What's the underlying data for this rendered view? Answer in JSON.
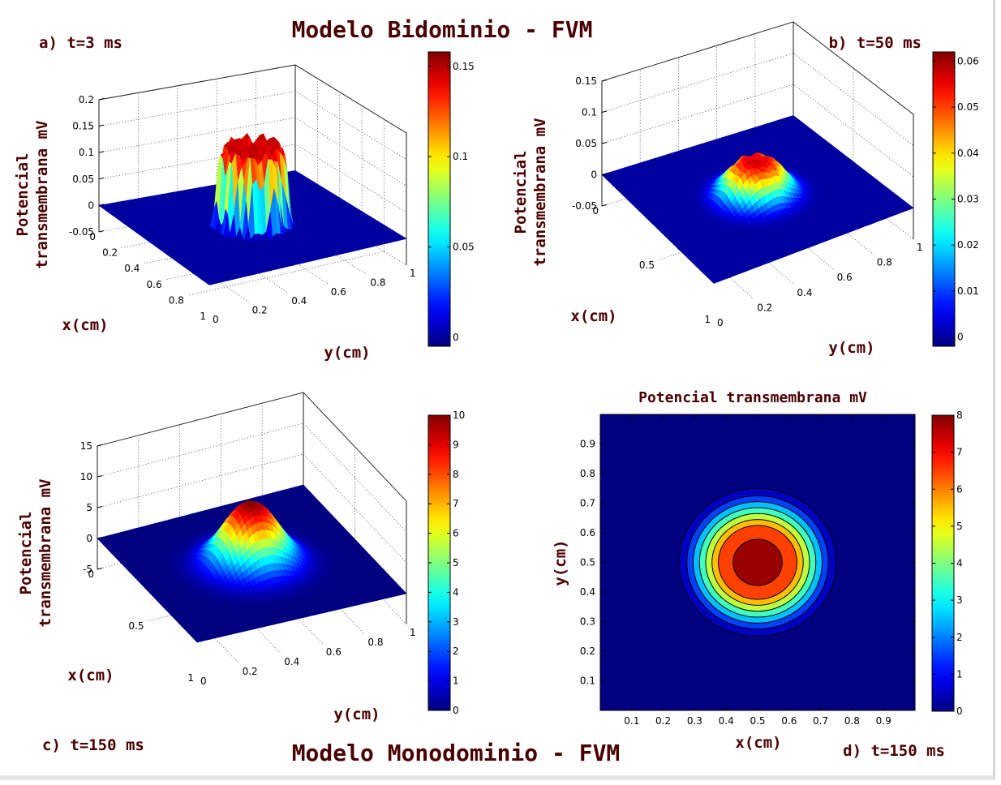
{
  "titles": {
    "top": "Modelo Bidominio - FVM",
    "bottom": "Modelo Monodominio - FVM"
  },
  "colors": {
    "title": "#4a0000",
    "surface_base": "#0000c8",
    "colormap": "jet"
  },
  "chart_data": [
    {
      "type": "surface",
      "panel_label": "a) t=3 ms",
      "zlabel": "Potencial transmembrana mV",
      "xlabel": "x(cm)",
      "ylabel": "y(cm)",
      "x_ticks": [
        "0",
        "0.2",
        "0.4",
        "0.6",
        "0.8",
        "1"
      ],
      "y_ticks": [
        "0",
        "0.2",
        "0.4",
        "0.6",
        "0.8",
        "1"
      ],
      "z_ticks": [
        "-0.05",
        "0",
        "0.05",
        "0.1",
        "0.15",
        "0.2"
      ],
      "zlim": [
        -0.05,
        0.2
      ],
      "colorbar": {
        "ticks": [
          "0",
          "0.05",
          "0.1",
          "0.15"
        ],
        "range": [
          -0.005,
          0.158
        ]
      },
      "peak": 0.155,
      "center": [
        0.5,
        0.5
      ],
      "shape": "plateau"
    },
    {
      "type": "surface",
      "panel_label": "b) t=50 ms",
      "zlabel": "Potencial transmembrana mV",
      "xlabel": "x(cm)",
      "ylabel": "y(cm)",
      "x_ticks": [
        "0",
        "0.5",
        "1"
      ],
      "y_ticks": [
        "0",
        "0.2",
        "0.4",
        "0.6",
        "0.8",
        "1"
      ],
      "z_ticks": [
        "-0.05",
        "0",
        "0.05",
        "0.1",
        "0.15"
      ],
      "zlim": [
        -0.05,
        0.15
      ],
      "colorbar": {
        "ticks": [
          "0",
          "0.01",
          "0.02",
          "0.03",
          "0.04",
          "0.05",
          "0.06"
        ],
        "range": [
          -0.002,
          0.062
        ]
      },
      "peak": 0.06,
      "center": [
        0.5,
        0.5
      ],
      "shape": "dome"
    },
    {
      "type": "surface",
      "panel_label": "c) t=150 ms",
      "zlabel": "Potencial transmembrana mV",
      "xlabel": "x(cm)",
      "ylabel": "y(cm)",
      "x_ticks": [
        "0",
        "0.5",
        "1"
      ],
      "y_ticks": [
        "0",
        "0.2",
        "0.4",
        "0.6",
        "0.8",
        "1"
      ],
      "z_ticks": [
        "-5",
        "0",
        "5",
        "10",
        "15"
      ],
      "zlim": [
        -5,
        15
      ],
      "colorbar": {
        "ticks": [
          "0",
          "1",
          "2",
          "3",
          "4",
          "5",
          "6",
          "7",
          "8",
          "9",
          "10"
        ],
        "range": [
          0,
          10
        ]
      },
      "peak": 10,
      "center": [
        0.5,
        0.5
      ],
      "shape": "gaussian"
    },
    {
      "type": "contour",
      "panel_label": "d) t=150 ms",
      "title": "Potencial transmembrana mV",
      "xlabel": "x(cm)",
      "ylabel": "y(cm)",
      "x_ticks": [
        "0.1",
        "0.2",
        "0.3",
        "0.4",
        "0.5",
        "0.6",
        "0.7",
        "0.8",
        "0.9"
      ],
      "y_ticks": [
        "0.1",
        "0.2",
        "0.3",
        "0.4",
        "0.5",
        "0.6",
        "0.7",
        "0.8",
        "0.9"
      ],
      "xlim": [
        0,
        1
      ],
      "ylim": [
        0,
        1
      ],
      "colorbar": {
        "ticks": [
          "0",
          "1",
          "2",
          "3",
          "4",
          "5",
          "6",
          "7",
          "8"
        ],
        "range": [
          0,
          8
        ]
      },
      "center": [
        0.5,
        0.5
      ],
      "levels": [
        {
          "value": 0.5,
          "radius": 0.25
        },
        {
          "value": 1.5,
          "radius": 0.225
        },
        {
          "value": 2.5,
          "radius": 0.205
        },
        {
          "value": 3.5,
          "radius": 0.185
        },
        {
          "value": 4.5,
          "radius": 0.165
        },
        {
          "value": 5.5,
          "radius": 0.145
        },
        {
          "value": 6.5,
          "radius": 0.125
        },
        {
          "value": 7.8,
          "radius": 0.078
        }
      ]
    }
  ]
}
